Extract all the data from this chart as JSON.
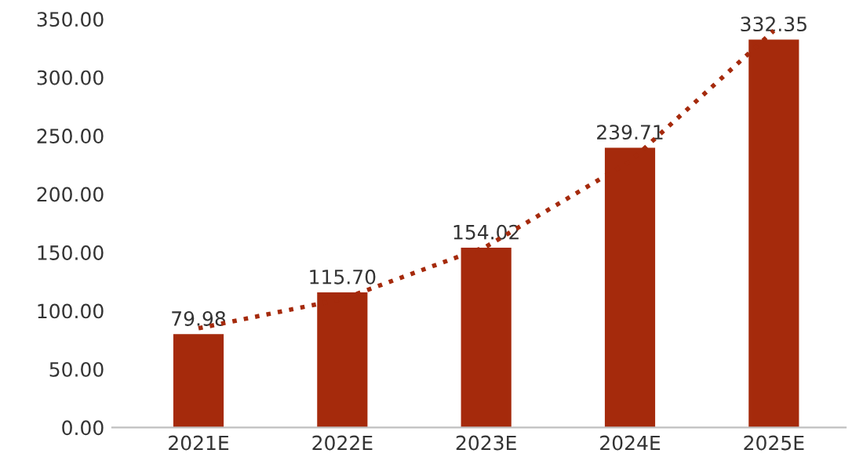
{
  "chart_data": {
    "type": "bar",
    "categories": [
      "2021E",
      "2022E",
      "2023E",
      "2024E",
      "2025E"
    ],
    "series": [
      {
        "color": "#a52a0c",
        "values": [
          79.98,
          115.7,
          154.02,
          239.71,
          332.35
        ],
        "value_labels": [
          "79.98",
          "115.70",
          "154.02",
          "239.71",
          "332.35"
        ]
      },
      {
        "type": "line",
        "color": "#a52a0c",
        "x": [
          "2021E",
          "2022E",
          "2023E",
          "2024E",
          "2025E"
        ],
        "values": [
          85,
          110,
          155,
          228,
          340
        ],
        "line_style": "dotted",
        "marker": "none"
      }
    ],
    "ylim": [
      0,
      350
    ],
    "yticks": [
      {
        "value": 0,
        "label": "0.00"
      },
      {
        "value": 50,
        "label": "50.00"
      },
      {
        "value": 100,
        "label": "100.00"
      },
      {
        "value": 150,
        "label": "150.00"
      },
      {
        "value": 200,
        "label": "200.00"
      },
      {
        "value": 250,
        "label": "250.00"
      },
      {
        "value": 300,
        "label": "300.00"
      },
      {
        "value": 350,
        "label": "350.00"
      }
    ],
    "grid": false,
    "legend": false
  }
}
